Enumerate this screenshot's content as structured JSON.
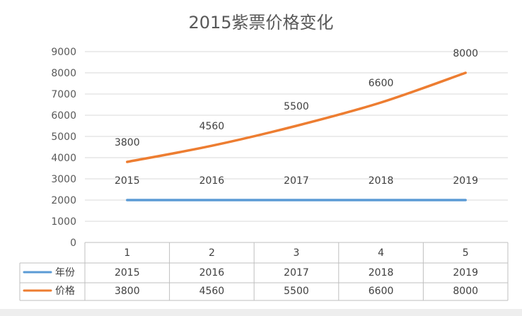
{
  "chart_data": {
    "type": "line",
    "title": "2015紫票价格变化",
    "xlabel": "",
    "ylabel": "",
    "ylim": [
      0,
      9000
    ],
    "yticks": [
      "0",
      "1000",
      "2000",
      "3000",
      "4000",
      "5000",
      "6000",
      "7000",
      "8000",
      "9000"
    ],
    "categories": [
      "1",
      "2",
      "3",
      "4",
      "5"
    ],
    "grid": true,
    "legend": "data-table",
    "series": [
      {
        "name": "年份",
        "color": "#5B9BD5",
        "values": [
          2015,
          2016,
          2017,
          2018,
          2019
        ],
        "labels": [
          "2015",
          "2016",
          "2017",
          "2018",
          "2019"
        ],
        "plot_value": 2000
      },
      {
        "name": "价格",
        "color": "#ED7D31",
        "values": [
          3800,
          4560,
          5500,
          6600,
          8000
        ],
        "labels": [
          "3800",
          "4560",
          "5500",
          "6600",
          "8000"
        ]
      }
    ]
  }
}
